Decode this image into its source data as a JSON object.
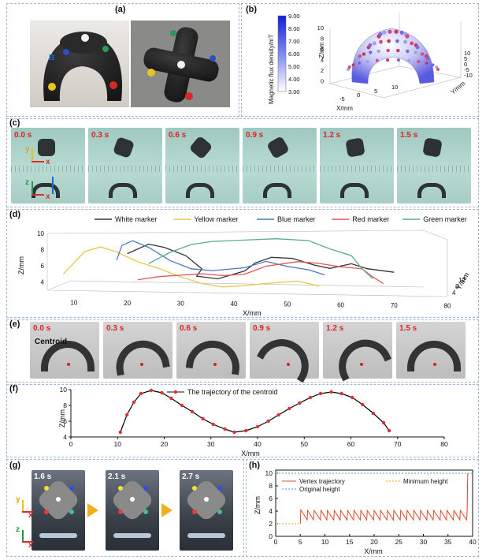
{
  "panels": {
    "a": "(a)",
    "b": "(b)",
    "c": "(c)",
    "d": "(d)",
    "e": "(e)",
    "f": "(f)",
    "g": "(g)",
    "h": "(h)"
  },
  "panel_b": {
    "colorbar_label": "Magnetic flux density/mT",
    "colorbar_ticks": [
      "9.00",
      "8.00",
      "7.00",
      "6.00",
      "5.00",
      "4.00",
      "3.00"
    ],
    "z_label": "Z/mm",
    "x_label": "X/mm",
    "y_label": "Y/mm",
    "z_ticks": [
      "10",
      "8",
      "6",
      "4",
      "2",
      "0"
    ],
    "x_ticks": [
      "-5",
      "0",
      "5",
      "10"
    ],
    "y_ticks": [
      "10",
      "5",
      "0",
      "-5",
      "-10"
    ],
    "x_ticks_back": [
      "-5",
      "0",
      "5",
      "10"
    ]
  },
  "panel_c": {
    "times": [
      "0.0 s",
      "0.3 s",
      "0.6 s",
      "0.9 s",
      "1.2 s",
      "1.5 s"
    ],
    "axis_y": "y",
    "axis_x": "x",
    "axis_z": "z",
    "field_label": "B"
  },
  "panel_e": {
    "times": [
      "0.0 s",
      "0.3 s",
      "0.6 s",
      "0.9 s",
      "1.2 s",
      "1.5 s"
    ],
    "centroid_label": "Centroid"
  },
  "panel_g": {
    "times": [
      "1.6 s",
      "2.1 s",
      "2.7 s"
    ],
    "axis_y": "y",
    "axis_x": "x",
    "axis_z": "z"
  },
  "chart_data": [
    {
      "id": "d",
      "type": "line",
      "title": "",
      "xlabel": "X/mm",
      "ylabel": "Z/mm",
      "zlabel": "Y/mm",
      "xlim": [
        5,
        80
      ],
      "ylim": [
        3,
        10
      ],
      "x_ticks": [
        10,
        20,
        30,
        40,
        50,
        60,
        70,
        80
      ],
      "z_ticks": [
        4,
        6,
        8,
        10
      ],
      "y3_ticks": [
        4,
        8,
        12
      ],
      "series": [
        {
          "name": "White marker",
          "color": "#333333",
          "x": [
            20,
            24,
            27,
            31,
            34,
            33,
            37,
            42,
            44,
            47,
            51,
            55,
            58,
            62,
            65,
            70
          ],
          "y": [
            7.6,
            8.8,
            8.4,
            7.4,
            5.8,
            4.9,
            4.6,
            5.6,
            6.6,
            7.3,
            7.2,
            6.4,
            6.0,
            6.6,
            6.0,
            5.6
          ]
        },
        {
          "name": "Yellow marker",
          "color": "#e8c94a",
          "x": [
            8,
            12,
            15,
            18,
            22,
            26,
            30,
            34,
            38,
            42,
            48,
            52,
            56
          ],
          "y": [
            5.0,
            7.8,
            8.4,
            7.8,
            6.6,
            5.8,
            4.8,
            4.0,
            3.6,
            3.8,
            4.2,
            4.4,
            3.8
          ]
        },
        {
          "name": "Blue marker",
          "color": "#4a78c2",
          "x": [
            18,
            19,
            21,
            24,
            28,
            32,
            36,
            42,
            46,
            50,
            54,
            57
          ],
          "y": [
            6.8,
            8.6,
            9.2,
            8.4,
            6.8,
            5.8,
            5.6,
            6.0,
            6.8,
            6.2,
            5.8,
            5.2
          ]
        },
        {
          "name": "Red marker",
          "color": "#e05656",
          "x": [
            22,
            26,
            30,
            34,
            38,
            42,
            46,
            52,
            56,
            60,
            64,
            66,
            68
          ],
          "y": [
            4.4,
            4.8,
            5.0,
            5.2,
            5.0,
            5.2,
            6.2,
            6.8,
            6.6,
            6.2,
            6.0,
            5.0,
            4.2
          ]
        },
        {
          "name": "Green marker",
          "color": "#5aaa90",
          "x": [
            24,
            28,
            32,
            36,
            42,
            48,
            54,
            58,
            62,
            64,
            66
          ],
          "y": [
            6.4,
            7.8,
            8.8,
            9.2,
            9.4,
            9.6,
            9.4,
            8.4,
            7.6,
            6.0,
            4.8
          ]
        }
      ]
    },
    {
      "id": "f",
      "type": "line",
      "title": "",
      "xlabel": "X/mm",
      "ylabel": "Z/mm",
      "xlim": [
        0,
        80
      ],
      "ylim": [
        4,
        10
      ],
      "x_ticks": [
        0,
        10,
        20,
        30,
        40,
        50,
        60,
        70,
        80
      ],
      "y_ticks": [
        4,
        6,
        8,
        10
      ],
      "legend": "The trajectory of the centroid",
      "series": [
        {
          "name": "The trajectory of the centroid",
          "color": "#000000",
          "marker_color": "#e03030",
          "x": [
            10.6,
            12,
            13.5,
            15,
            17.2,
            19.5,
            21.5,
            23.8,
            26,
            28.3,
            30.5,
            33,
            35,
            37.5,
            40,
            42.3,
            44.5,
            46.8,
            49,
            51.3,
            53.5,
            55.8,
            58,
            60.3,
            62.5,
            64.8,
            67,
            68.2
          ],
          "y": [
            4.6,
            6.8,
            8.4,
            9.5,
            9.9,
            9.6,
            8.9,
            8.0,
            7.2,
            6.3,
            5.6,
            5.0,
            4.6,
            4.8,
            5.3,
            6.0,
            6.8,
            7.6,
            8.3,
            9.0,
            9.5,
            9.7,
            9.5,
            9.0,
            8.1,
            7.0,
            5.8,
            4.8
          ]
        }
      ]
    },
    {
      "id": "h",
      "type": "line",
      "title": "",
      "xlabel": "X/mm",
      "ylabel": "Z/mm",
      "xlim": [
        0,
        40
      ],
      "ylim": [
        0,
        10.5
      ],
      "x_ticks": [
        0,
        5,
        10,
        15,
        20,
        25,
        30,
        35,
        40
      ],
      "y_ticks": [
        0,
        2,
        4,
        6,
        8,
        10
      ],
      "series": [
        {
          "name": "Vertex trajectory",
          "color": "#e04a2a",
          "x": [
            5,
            5.1,
            6.4,
            6.5,
            7.7,
            7.8,
            9.1,
            9.2,
            10.4,
            10.5,
            11.8,
            11.9,
            13.1,
            13.2,
            14.5,
            14.6,
            15.8,
            15.9,
            17.2,
            17.3,
            18.5,
            18.6,
            19.9,
            20.0,
            21.2,
            21.3,
            22.6,
            22.7,
            23.9,
            24.0,
            25.3,
            25.4,
            26.6,
            26.7,
            28.0,
            28.1,
            29.3,
            29.4,
            30.7,
            30.8,
            32.0,
            32.1,
            33.4,
            33.5,
            34.7,
            34.8,
            36.1,
            36.2,
            37.4,
            37.5,
            38.8,
            38.9,
            39.0
          ],
          "y": [
            2.0,
            4.2,
            2.6,
            4.1,
            2.6,
            4.1,
            2.6,
            4.1,
            2.6,
            4.1,
            2.6,
            4.1,
            2.6,
            4.1,
            2.6,
            4.1,
            2.6,
            4.1,
            2.6,
            4.1,
            2.6,
            4.1,
            2.6,
            4.1,
            2.6,
            4.1,
            2.6,
            4.1,
            2.6,
            4.1,
            2.6,
            4.1,
            2.6,
            4.1,
            2.6,
            4.1,
            2.6,
            4.1,
            2.6,
            4.1,
            2.6,
            4.1,
            2.6,
            4.1,
            2.6,
            4.1,
            2.6,
            4.1,
            2.6,
            4.1,
            2.6,
            4.1,
            10.0
          ]
        },
        {
          "name": "Original height",
          "color": "#3aa0d8",
          "style": "dotted",
          "x": [
            0,
            40
          ],
          "y": [
            10.0,
            10.0
          ]
        },
        {
          "name": "Minimum height",
          "color": "#f0a020",
          "style": "dotted",
          "x": [
            0,
            5
          ],
          "y": [
            2.0,
            2.0
          ]
        }
      ]
    }
  ]
}
